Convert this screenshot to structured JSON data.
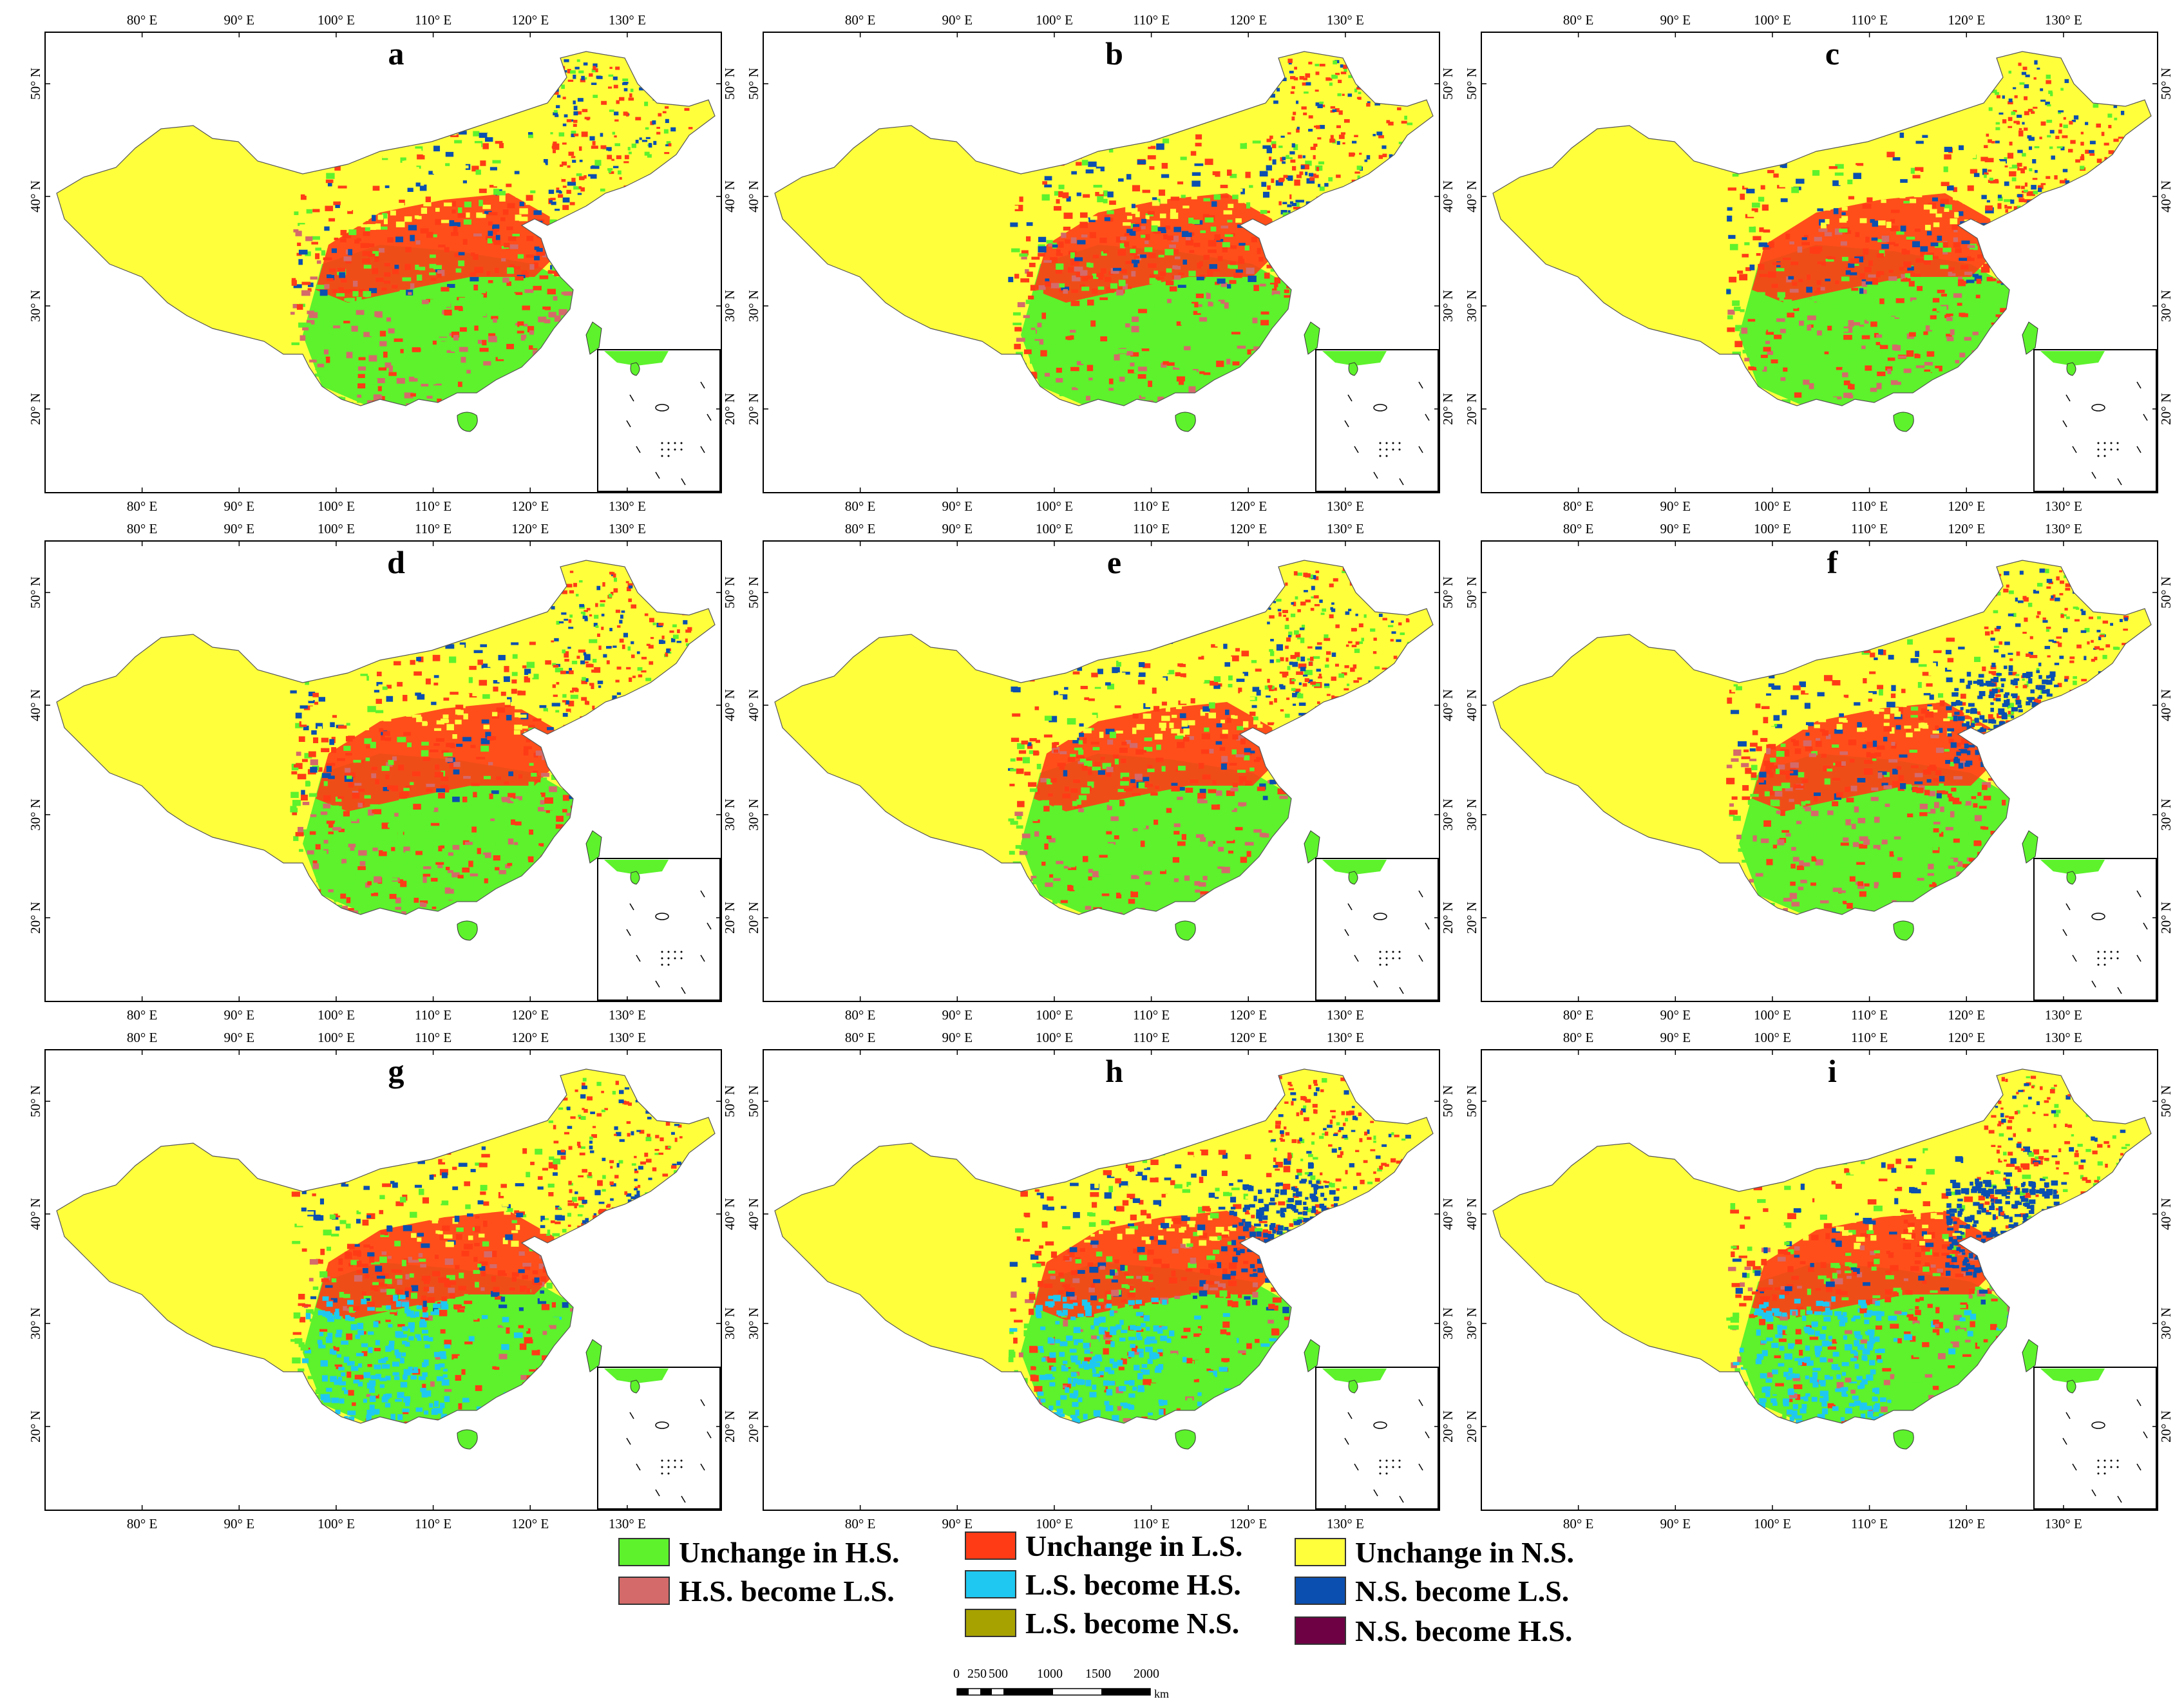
{
  "panels": [
    {
      "letter": "a",
      "variant": 0
    },
    {
      "letter": "b",
      "variant": 1
    },
    {
      "letter": "c",
      "variant": 2
    },
    {
      "letter": "d",
      "variant": 3
    },
    {
      "letter": "e",
      "variant": 4
    },
    {
      "letter": "f",
      "variant": 5
    },
    {
      "letter": "g",
      "variant": 6
    },
    {
      "letter": "h",
      "variant": 7
    },
    {
      "letter": "i",
      "variant": 8
    }
  ],
  "axes": {
    "longitude_ticks": [
      "80° E",
      "90° E",
      "100° E",
      "110° E",
      "120° E",
      "130° E"
    ],
    "latitude_ticks": [
      "50° N",
      "40° N",
      "30° N",
      "20° N"
    ]
  },
  "legend": {
    "items": [
      {
        "label": "Unchange in H.S.",
        "color": "#5df22c"
      },
      {
        "label": "H.S. become L.S.",
        "color": "#d46a6a"
      },
      {
        "label": "Unchange in L.S.",
        "color": "#ff3b16"
      },
      {
        "label": "L.S. become H.S.",
        "color": "#1ec8f0"
      },
      {
        "label": "L.S. become N.S.",
        "color": "#a8a200"
      },
      {
        "label": "Unchange in N.S.",
        "color": "#ffff3c"
      },
      {
        "label": "N.S. become L.S.",
        "color": "#0b4fb0"
      },
      {
        "label": "N.S. become H.S.",
        "color": "#6e0044"
      }
    ]
  },
  "scale_bar": {
    "labels": [
      "0",
      "250",
      "500",
      "1000",
      "1500",
      "2000"
    ],
    "unit": "km"
  }
}
